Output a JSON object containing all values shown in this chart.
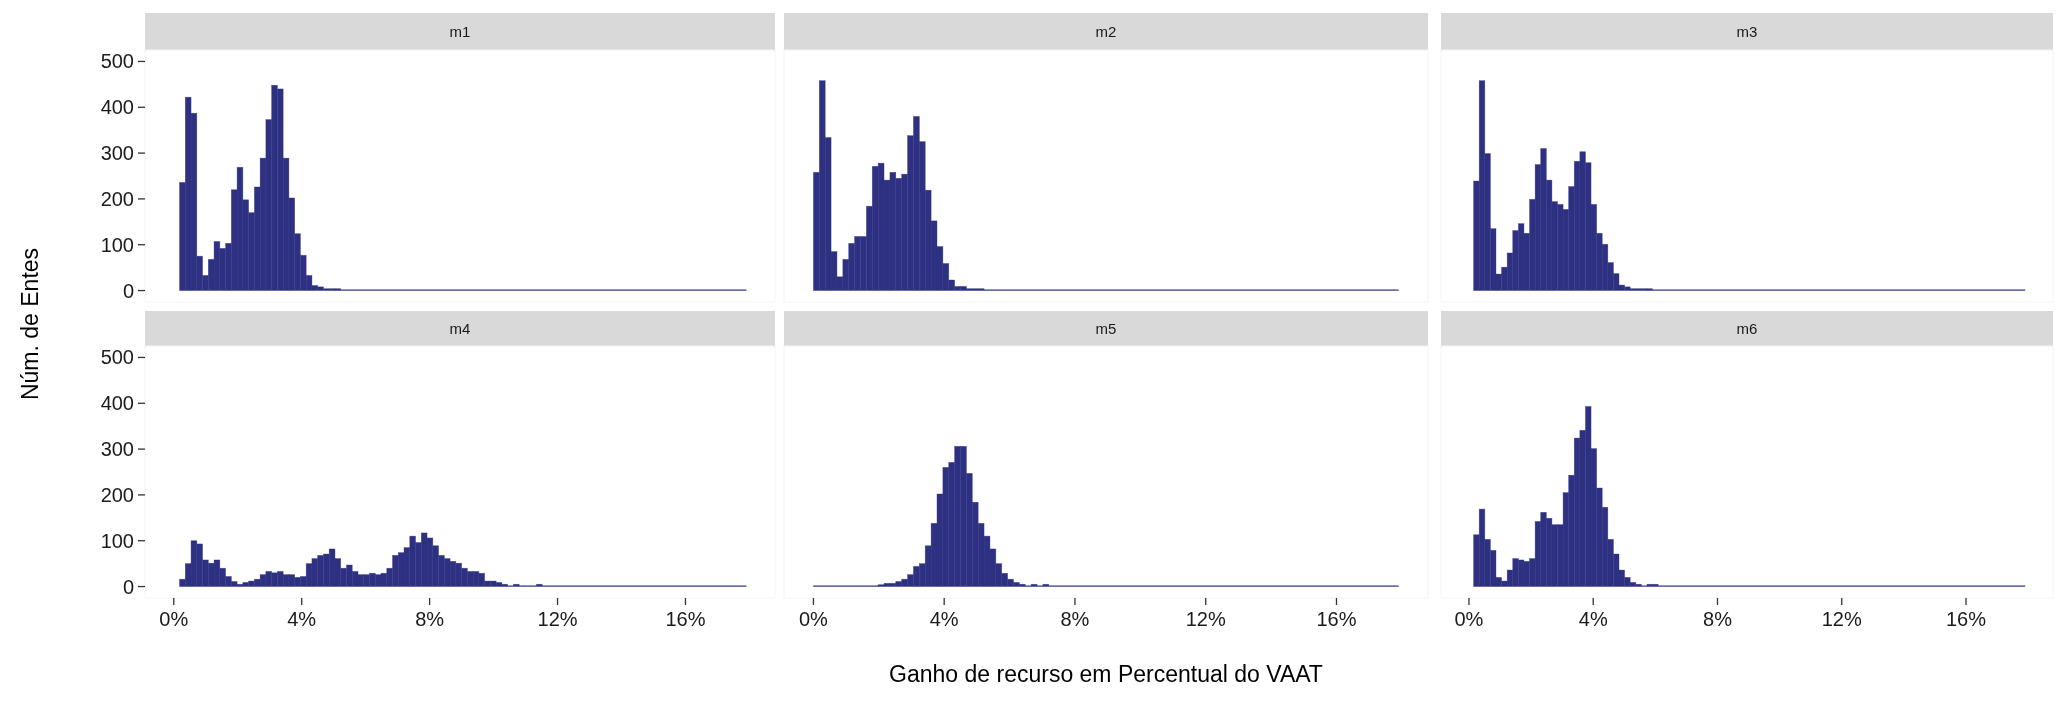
{
  "chart_data": [
    {
      "type": "histogram",
      "title": "m1",
      "ylabel": "Núm. de Entes",
      "color": "#2e3182",
      "tick_labels": "y",
      "grid": false,
      "xlim": [
        -0.9,
        18.8
      ],
      "ylim": [
        -25,
        525
      ],
      "yticks": [
        0,
        100,
        200,
        300,
        400,
        500
      ],
      "bins": [
        0.18,
        0.36,
        0.54,
        0.72,
        0.9,
        1.08,
        1.26,
        1.44,
        1.62,
        1.8,
        1.98,
        2.16,
        2.34,
        2.52,
        2.7,
        2.88,
        3.06,
        3.24,
        3.42,
        3.6,
        3.78,
        3.96,
        4.14,
        4.32,
        4.5,
        4.68,
        4.86,
        5.04,
        5.22,
        17.9
      ],
      "values": [
        236,
        422,
        387,
        75,
        33,
        68,
        107,
        92,
        103,
        220,
        269,
        198,
        170,
        226,
        289,
        373,
        448,
        440,
        289,
        202,
        124,
        77,
        33,
        11,
        8,
        4,
        4,
        4,
        0
      ]
    },
    {
      "type": "histogram",
      "title": "m2",
      "color": "#2e3182",
      "tick_labels": false,
      "grid": false,
      "xlim": [
        -0.9,
        18.8
      ],
      "ylim": [
        -25,
        525
      ],
      "bins": [
        0,
        0.18,
        0.36,
        0.54,
        0.72,
        0.9,
        1.08,
        1.26,
        1.44,
        1.62,
        1.8,
        1.98,
        2.16,
        2.34,
        2.52,
        2.7,
        2.88,
        3.06,
        3.24,
        3.42,
        3.6,
        3.78,
        3.96,
        4.14,
        4.32,
        4.5,
        4.68,
        4.86,
        5.04,
        5.22,
        17.9
      ],
      "values": [
        258,
        458,
        334,
        85,
        30,
        68,
        103,
        118,
        118,
        184,
        271,
        278,
        241,
        258,
        245,
        254,
        338,
        380,
        325,
        219,
        152,
        96,
        59,
        23,
        9,
        9,
        4,
        4,
        4,
        0
      ]
    },
    {
      "type": "histogram",
      "title": "m3",
      "color": "#2e3182",
      "tick_labels": false,
      "grid": false,
      "xlim": [
        -0.9,
        18.8
      ],
      "ylim": [
        -25,
        525
      ],
      "bins": [
        0.15,
        0.33,
        0.51,
        0.69,
        0.87,
        1.05,
        1.23,
        1.41,
        1.59,
        1.77,
        1.95,
        2.13,
        2.31,
        2.49,
        2.67,
        2.85,
        3.03,
        3.21,
        3.39,
        3.57,
        3.75,
        3.93,
        4.11,
        4.29,
        4.47,
        4.65,
        4.83,
        5.01,
        5.19,
        5.37,
        5.55,
        5.73,
        5.91,
        17.9
      ],
      "values": [
        239,
        458,
        299,
        135,
        36,
        51,
        82,
        131,
        146,
        125,
        199,
        275,
        310,
        241,
        194,
        188,
        177,
        227,
        282,
        303,
        279,
        188,
        125,
        101,
        61,
        37,
        12,
        8,
        4,
        4,
        4,
        4,
        0
      ]
    },
    {
      "type": "histogram",
      "title": "m4",
      "color": "#2e3182",
      "grid": false,
      "xlim": [
        -0.9,
        18.8
      ],
      "ylim": [
        -25,
        525
      ],
      "yticks": [
        0,
        100,
        200,
        300,
        400,
        500
      ],
      "xticks": [
        {
          "value": 0,
          "label": "0%"
        },
        {
          "value": 4,
          "label": "4%"
        },
        {
          "value": 8,
          "label": "8%"
        },
        {
          "value": 12,
          "label": "12%"
        },
        {
          "value": 16,
          "label": "16%"
        }
      ],
      "bins": [
        0.18,
        0.36,
        0.54,
        0.72,
        0.9,
        1.08,
        1.26,
        1.44,
        1.62,
        1.8,
        1.98,
        2.16,
        2.34,
        2.52,
        2.7,
        2.88,
        3.06,
        3.24,
        3.42,
        3.6,
        3.78,
        3.96,
        4.14,
        4.32,
        4.5,
        4.68,
        4.86,
        5.04,
        5.22,
        5.4,
        5.58,
        5.76,
        5.94,
        6.12,
        6.3,
        6.48,
        6.66,
        6.84,
        7.02,
        7.2,
        7.38,
        7.56,
        7.74,
        7.92,
        8.1,
        8.28,
        8.46,
        8.64,
        8.82,
        9,
        9.18,
        9.36,
        9.54,
        9.72,
        9.9,
        10.08,
        10.26,
        10.44,
        10.62,
        10.8,
        10.98,
        11.16,
        11.34,
        11.52,
        17.9
      ],
      "values": [
        16,
        50,
        100,
        93,
        58,
        51,
        58,
        40,
        22,
        11,
        5,
        9,
        12,
        16,
        26,
        33,
        30,
        33,
        26,
        26,
        20,
        22,
        50,
        61,
        68,
        71,
        82,
        61,
        40,
        47,
        33,
        26,
        26,
        29,
        26,
        29,
        40,
        68,
        74,
        85,
        110,
        96,
        117,
        106,
        89,
        68,
        61,
        55,
        51,
        40,
        33,
        33,
        29,
        12,
        12,
        9,
        5,
        1,
        5,
        1,
        1,
        1,
        5,
        0
      ]
    },
    {
      "type": "histogram",
      "title": "m5",
      "xlabel": "Ganho de recurso em Percentual do VAAT",
      "color": "#2e3182",
      "tick_labels": "x",
      "grid": false,
      "xlim": [
        -0.9,
        18.8
      ],
      "ylim": [
        -25,
        525
      ],
      "xticks": [
        {
          "value": 0,
          "label": "0%"
        },
        {
          "value": 4,
          "label": "4%"
        },
        {
          "value": 8,
          "label": "8%"
        },
        {
          "value": 12,
          "label": "12%"
        },
        {
          "value": 16,
          "label": "16%"
        }
      ],
      "bins": [
        0,
        1.98,
        2.16,
        2.34,
        2.52,
        2.7,
        2.88,
        3.06,
        3.24,
        3.42,
        3.6,
        3.78,
        3.96,
        4.14,
        4.32,
        4.5,
        4.68,
        4.86,
        5.04,
        5.22,
        5.4,
        5.58,
        5.76,
        5.94,
        6.12,
        6.3,
        6.48,
        6.66,
        6.84,
        7.02,
        7.2,
        17.9
      ],
      "values": [
        0,
        4,
        7,
        7,
        11,
        16,
        26,
        44,
        50,
        89,
        138,
        202,
        260,
        271,
        306,
        306,
        247,
        184,
        138,
        110,
        82,
        50,
        29,
        16,
        9,
        5,
        1,
        5,
        1,
        5,
        0
      ]
    },
    {
      "type": "histogram",
      "title": "m6",
      "color": "#2e3182",
      "tick_labels": "x",
      "grid": false,
      "xlim": [
        -0.9,
        18.8
      ],
      "ylim": [
        -25,
        525
      ],
      "xticks": [
        {
          "value": 0,
          "label": "0%"
        },
        {
          "value": 4,
          "label": "4%"
        },
        {
          "value": 8,
          "label": "8%"
        },
        {
          "value": 12,
          "label": "12%"
        },
        {
          "value": 16,
          "label": "16%"
        }
      ],
      "bins": [
        0.15,
        0.33,
        0.51,
        0.69,
        0.87,
        1.05,
        1.23,
        1.41,
        1.59,
        1.77,
        1.95,
        2.13,
        2.31,
        2.49,
        2.67,
        2.85,
        3.03,
        3.21,
        3.39,
        3.57,
        3.75,
        3.93,
        4.11,
        4.29,
        4.47,
        4.65,
        4.83,
        5.01,
        5.19,
        5.37,
        5.55,
        5.73,
        5.91,
        6.09,
        17.9
      ],
      "values": [
        113,
        169,
        103,
        79,
        20,
        12,
        36,
        61,
        58,
        55,
        61,
        142,
        162,
        149,
        135,
        135,
        205,
        243,
        324,
        341,
        393,
        301,
        215,
        173,
        103,
        71,
        36,
        20,
        9,
        5,
        1,
        5,
        5,
        0
      ]
    }
  ]
}
